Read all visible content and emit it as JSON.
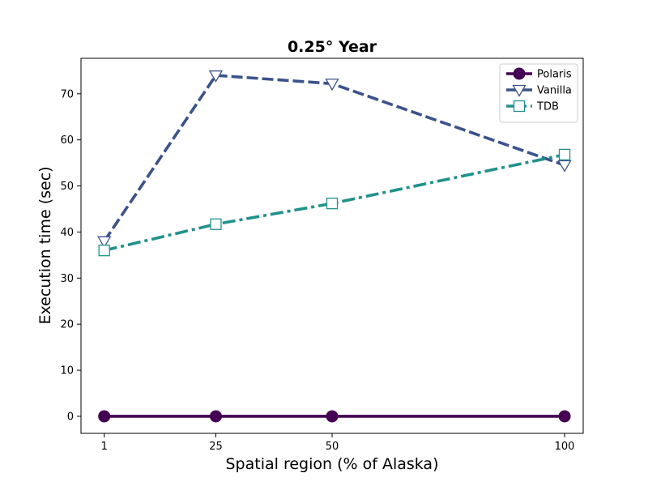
{
  "chart_data": {
    "type": "line",
    "title": "0.25° Year",
    "xlabel": "Spatial region (% of Alaska)",
    "ylabel": "Execution time (sec)",
    "x": [
      1,
      25,
      50,
      100
    ],
    "xticks": [
      1,
      25,
      50,
      100
    ],
    "yticks": [
      0,
      10,
      20,
      30,
      40,
      50,
      60,
      70
    ],
    "xlim": [
      -4,
      104
    ],
    "ylim": [
      -3.7,
      77.7
    ],
    "grid": false,
    "legend_position": "top-right",
    "series": [
      {
        "name": "Polaris",
        "values": [
          0,
          0,
          0,
          0
        ],
        "color": "#440154",
        "line_style": "solid",
        "marker": "filled-circle"
      },
      {
        "name": "Vanilla",
        "values": [
          38,
          74,
          72.2,
          54.5
        ],
        "color": "#3b528b",
        "line_style": "dashed",
        "marker": "open-down-triangle"
      },
      {
        "name": "TDB",
        "values": [
          36,
          41.7,
          46.2,
          56.8
        ],
        "color": "#21918c",
        "line_style": "dash-dot",
        "marker": "open-square"
      }
    ]
  }
}
